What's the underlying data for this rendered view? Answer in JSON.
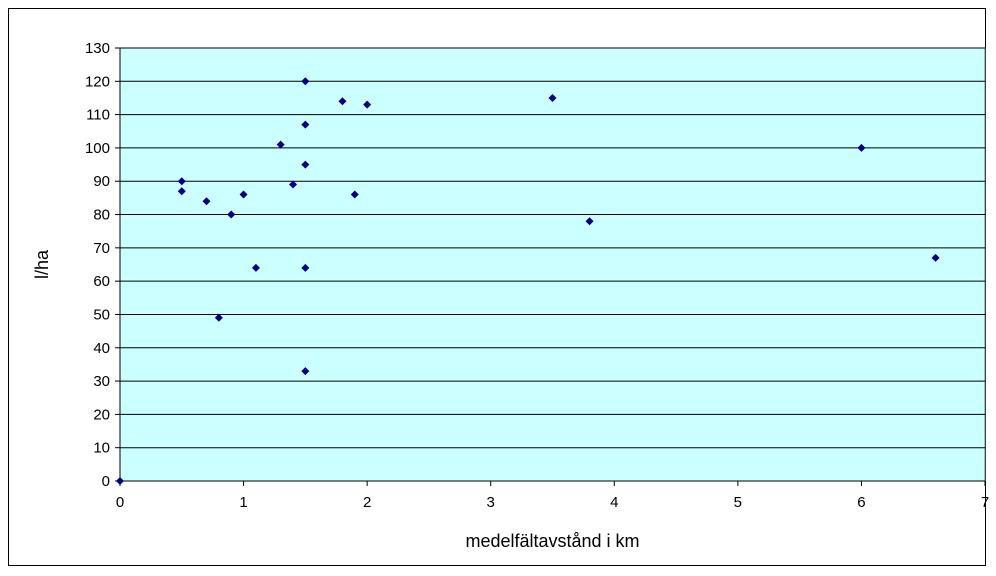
{
  "chart_data": {
    "type": "scatter",
    "title": "",
    "xlabel": "medelfältavstånd i km",
    "ylabel": "l/ha",
    "xlim": [
      0,
      7
    ],
    "ylim": [
      0,
      130
    ],
    "x_ticks": [
      0,
      1,
      2,
      3,
      4,
      5,
      6,
      7
    ],
    "y_ticks": [
      0,
      10,
      20,
      30,
      40,
      50,
      60,
      70,
      80,
      90,
      100,
      110,
      120,
      130
    ],
    "grid": "horizontal",
    "legend": "none",
    "plot_background": "#ccffff",
    "marker_color": "#000080",
    "series": [
      {
        "x": [
          0,
          0.5,
          0.5,
          0.7,
          0.8,
          0.9,
          1.0,
          1.1,
          1.3,
          1.4,
          1.5,
          1.5,
          1.5,
          1.5,
          1.5,
          1.8,
          1.9,
          2.0,
          3.5,
          3.8,
          6.0,
          6.6
        ],
        "y": [
          0,
          90,
          87,
          84,
          49,
          80,
          86,
          64,
          101,
          89,
          120,
          107,
          95,
          64,
          33,
          114,
          86,
          113,
          115,
          78,
          100,
          67
        ]
      }
    ]
  }
}
